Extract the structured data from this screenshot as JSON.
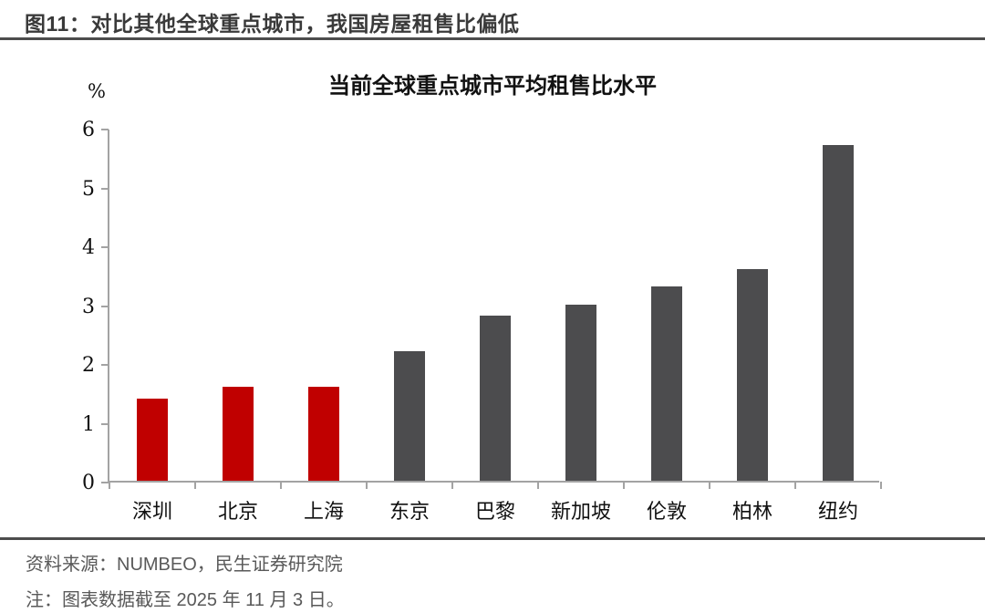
{
  "figure": {
    "title": "图11：对比其他全球重点城市，我国房屋租售比偏低"
  },
  "chart_data": {
    "type": "bar",
    "title": "当前全球重点城市平均租售比水平",
    "unit_label": "%",
    "categories": [
      "深圳",
      "北京",
      "上海",
      "东京",
      "巴黎",
      "新加坡",
      "伦敦",
      "柏林",
      "纽约"
    ],
    "category_slugs": [
      "shenzhen",
      "beijing",
      "shanghai",
      "tokyo",
      "paris",
      "singapore",
      "london",
      "berlin",
      "new-york"
    ],
    "values": [
      1.4,
      1.6,
      1.6,
      2.2,
      2.8,
      3.0,
      3.3,
      3.6,
      5.7
    ],
    "bar_colors": [
      "#c00000",
      "#c00000",
      "#c00000",
      "#4c4c4e",
      "#4c4c4e",
      "#4c4c4e",
      "#4c4c4e",
      "#4c4c4e",
      "#4c4c4e"
    ],
    "highlight_color": "#c00000",
    "default_color": "#4c4c4e",
    "axis_color": "#a3a3a3",
    "xlabel": "",
    "ylabel": "%",
    "ylim": [
      0,
      6
    ],
    "yticks": [
      0,
      1,
      2,
      3,
      4,
      5,
      6
    ],
    "grid": false,
    "legend": "none"
  },
  "footer": {
    "source": "资料来源：NUMBEO，民生证券研究院",
    "note": "注：图表数据截至 2025 年 11 月 3 日。"
  }
}
